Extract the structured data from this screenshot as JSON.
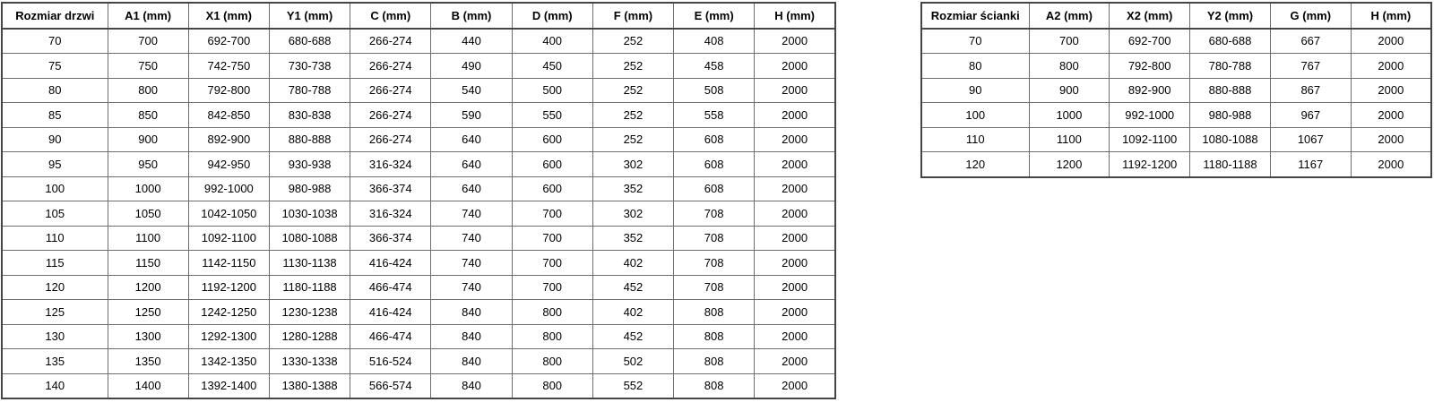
{
  "page": {
    "background_color": "#ffffff",
    "text_color": "#000000",
    "border_color": "#6e6e6e",
    "outer_border_color": "#454545"
  },
  "chart_data": [
    {
      "type": "table",
      "name": "door-dimensions",
      "columns": [
        "Rozmiar drzwi",
        "A1 (mm)",
        "X1 (mm)",
        "Y1 (mm)",
        "C (mm)",
        "B (mm)",
        "D (mm)",
        "F (mm)",
        "E (mm)",
        "H (mm)"
      ],
      "rows": [
        [
          "70",
          "700",
          "692-700",
          "680-688",
          "266-274",
          "440",
          "400",
          "252",
          "408",
          "2000"
        ],
        [
          "75",
          "750",
          "742-750",
          "730-738",
          "266-274",
          "490",
          "450",
          "252",
          "458",
          "2000"
        ],
        [
          "80",
          "800",
          "792-800",
          "780-788",
          "266-274",
          "540",
          "500",
          "252",
          "508",
          "2000"
        ],
        [
          "85",
          "850",
          "842-850",
          "830-838",
          "266-274",
          "590",
          "550",
          "252",
          "558",
          "2000"
        ],
        [
          "90",
          "900",
          "892-900",
          "880-888",
          "266-274",
          "640",
          "600",
          "252",
          "608",
          "2000"
        ],
        [
          "95",
          "950",
          "942-950",
          "930-938",
          "316-324",
          "640",
          "600",
          "302",
          "608",
          "2000"
        ],
        [
          "100",
          "1000",
          "992-1000",
          "980-988",
          "366-374",
          "640",
          "600",
          "352",
          "608",
          "2000"
        ],
        [
          "105",
          "1050",
          "1042-1050",
          "1030-1038",
          "316-324",
          "740",
          "700",
          "302",
          "708",
          "2000"
        ],
        [
          "110",
          "1100",
          "1092-1100",
          "1080-1088",
          "366-374",
          "740",
          "700",
          "352",
          "708",
          "2000"
        ],
        [
          "115",
          "1150",
          "1142-1150",
          "1130-1138",
          "416-424",
          "740",
          "700",
          "402",
          "708",
          "2000"
        ],
        [
          "120",
          "1200",
          "1192-1200",
          "1180-1188",
          "466-474",
          "740",
          "700",
          "452",
          "708",
          "2000"
        ],
        [
          "125",
          "1250",
          "1242-1250",
          "1230-1238",
          "416-424",
          "840",
          "800",
          "402",
          "808",
          "2000"
        ],
        [
          "130",
          "1300",
          "1292-1300",
          "1280-1288",
          "466-474",
          "840",
          "800",
          "452",
          "808",
          "2000"
        ],
        [
          "135",
          "1350",
          "1342-1350",
          "1330-1338",
          "516-524",
          "840",
          "800",
          "502",
          "808",
          "2000"
        ],
        [
          "140",
          "1400",
          "1392-1400",
          "1380-1388",
          "566-574",
          "840",
          "800",
          "552",
          "808",
          "2000"
        ]
      ]
    },
    {
      "type": "table",
      "name": "wall-dimensions",
      "columns": [
        "Rozmiar ścianki",
        "A2 (mm)",
        "X2 (mm)",
        "Y2 (mm)",
        "G (mm)",
        "H (mm)"
      ],
      "rows": [
        [
          "70",
          "700",
          "692-700",
          "680-688",
          "667",
          "2000"
        ],
        [
          "80",
          "800",
          "792-800",
          "780-788",
          "767",
          "2000"
        ],
        [
          "90",
          "900",
          "892-900",
          "880-888",
          "867",
          "2000"
        ],
        [
          "100",
          "1000",
          "992-1000",
          "980-988",
          "967",
          "2000"
        ],
        [
          "110",
          "1100",
          "1092-1100",
          "1080-1088",
          "1067",
          "2000"
        ],
        [
          "120",
          "1200",
          "1192-1200",
          "1180-1188",
          "1167",
          "2000"
        ]
      ]
    }
  ]
}
